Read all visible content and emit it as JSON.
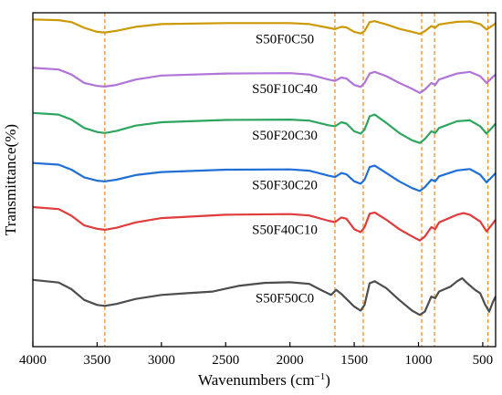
{
  "chart_data": {
    "type": "line",
    "xlabel": "Wavenumbers (cm",
    "xlabel_sup": "−1",
    "xlabel_close": ")",
    "ylabel": "Transmittance(%)",
    "xlim": [
      4000,
      400
    ],
    "x_reversed": true,
    "ylim": [
      0,
      1
    ],
    "y_ticks_shown": false,
    "x_ticks": [
      4000,
      3500,
      3000,
      2500,
      2000,
      1500,
      1000,
      500
    ],
    "x_tick_labels": [
      "4000",
      "3500",
      "3000",
      "2500",
      "2000",
      "1500",
      "1000",
      "500"
    ],
    "reference_lines": [
      3440,
      1650,
      1430,
      975,
      875,
      460
    ],
    "reference_line_color": "#f28e2b",
    "grid": false,
    "legend": "none",
    "series": [
      {
        "name": "S50F0C50",
        "color": "#cc9a06",
        "label_x": 2040,
        "points": [
          [
            4000,
            0.98
          ],
          [
            3800,
            0.978
          ],
          [
            3700,
            0.972
          ],
          [
            3600,
            0.955
          ],
          [
            3500,
            0.943
          ],
          [
            3440,
            0.941
          ],
          [
            3350,
            0.946
          ],
          [
            3200,
            0.958
          ],
          [
            3000,
            0.966
          ],
          [
            2500,
            0.969
          ],
          [
            2000,
            0.969
          ],
          [
            1850,
            0.966
          ],
          [
            1700,
            0.955
          ],
          [
            1650,
            0.951
          ],
          [
            1600,
            0.958
          ],
          [
            1560,
            0.956
          ],
          [
            1500,
            0.943
          ],
          [
            1450,
            0.938
          ],
          [
            1420,
            0.945
          ],
          [
            1380,
            0.972
          ],
          [
            1340,
            0.975
          ],
          [
            1250,
            0.965
          ],
          [
            1150,
            0.952
          ],
          [
            1050,
            0.943
          ],
          [
            990,
            0.937
          ],
          [
            950,
            0.945
          ],
          [
            900,
            0.96
          ],
          [
            870,
            0.955
          ],
          [
            840,
            0.965
          ],
          [
            700,
            0.973
          ],
          [
            600,
            0.974
          ],
          [
            520,
            0.966
          ],
          [
            470,
            0.95
          ],
          [
            430,
            0.96
          ],
          [
            400,
            0.968
          ]
        ]
      },
      {
        "name": "S50F10C40",
        "color": "#b174d8",
        "label_x": 2040,
        "points": [
          [
            4000,
            0.835
          ],
          [
            3800,
            0.83
          ],
          [
            3700,
            0.815
          ],
          [
            3600,
            0.79
          ],
          [
            3500,
            0.781
          ],
          [
            3440,
            0.779
          ],
          [
            3350,
            0.784
          ],
          [
            3200,
            0.8
          ],
          [
            3000,
            0.812
          ],
          [
            2500,
            0.818
          ],
          [
            2000,
            0.819
          ],
          [
            1850,
            0.815
          ],
          [
            1700,
            0.8
          ],
          [
            1650,
            0.796
          ],
          [
            1600,
            0.806
          ],
          [
            1560,
            0.803
          ],
          [
            1500,
            0.784
          ],
          [
            1450,
            0.778
          ],
          [
            1420,
            0.79
          ],
          [
            1380,
            0.818
          ],
          [
            1340,
            0.823
          ],
          [
            1250,
            0.81
          ],
          [
            1150,
            0.79
          ],
          [
            1050,
            0.772
          ],
          [
            990,
            0.76
          ],
          [
            950,
            0.77
          ],
          [
            900,
            0.79
          ],
          [
            870,
            0.784
          ],
          [
            840,
            0.8
          ],
          [
            700,
            0.818
          ],
          [
            600,
            0.823
          ],
          [
            520,
            0.81
          ],
          [
            470,
            0.79
          ],
          [
            430,
            0.805
          ],
          [
            400,
            0.815
          ]
        ]
      },
      {
        "name": "S50F20C30",
        "color": "#2ea55f",
        "label_x": 2040,
        "points": [
          [
            4000,
            0.7
          ],
          [
            3800,
            0.695
          ],
          [
            3700,
            0.68
          ],
          [
            3600,
            0.655
          ],
          [
            3500,
            0.643
          ],
          [
            3440,
            0.64
          ],
          [
            3350,
            0.646
          ],
          [
            3200,
            0.662
          ],
          [
            3000,
            0.672
          ],
          [
            2500,
            0.679
          ],
          [
            2000,
            0.68
          ],
          [
            1850,
            0.677
          ],
          [
            1700,
            0.663
          ],
          [
            1650,
            0.66
          ],
          [
            1600,
            0.672
          ],
          [
            1560,
            0.668
          ],
          [
            1500,
            0.645
          ],
          [
            1450,
            0.638
          ],
          [
            1420,
            0.65
          ],
          [
            1380,
            0.69
          ],
          [
            1340,
            0.695
          ],
          [
            1250,
            0.67
          ],
          [
            1150,
            0.64
          ],
          [
            1050,
            0.618
          ],
          [
            990,
            0.61
          ],
          [
            950,
            0.622
          ],
          [
            900,
            0.645
          ],
          [
            870,
            0.64
          ],
          [
            840,
            0.655
          ],
          [
            700,
            0.675
          ],
          [
            600,
            0.678
          ],
          [
            520,
            0.66
          ],
          [
            470,
            0.638
          ],
          [
            430,
            0.655
          ],
          [
            400,
            0.668
          ]
        ]
      },
      {
        "name": "S50F30C20",
        "color": "#1f6fd6",
        "label_x": 2040,
        "points": [
          [
            4000,
            0.55
          ],
          [
            3800,
            0.545
          ],
          [
            3700,
            0.53
          ],
          [
            3600,
            0.507
          ],
          [
            3500,
            0.497
          ],
          [
            3440,
            0.495
          ],
          [
            3350,
            0.5
          ],
          [
            3200,
            0.514
          ],
          [
            3000,
            0.523
          ],
          [
            2500,
            0.53
          ],
          [
            2000,
            0.531
          ],
          [
            1850,
            0.527
          ],
          [
            1700,
            0.512
          ],
          [
            1650,
            0.508
          ],
          [
            1600,
            0.52
          ],
          [
            1560,
            0.516
          ],
          [
            1500,
            0.495
          ],
          [
            1450,
            0.488
          ],
          [
            1420,
            0.5
          ],
          [
            1380,
            0.538
          ],
          [
            1340,
            0.542
          ],
          [
            1250,
            0.52
          ],
          [
            1150,
            0.495
          ],
          [
            1050,
            0.475
          ],
          [
            990,
            0.466
          ],
          [
            950,
            0.478
          ],
          [
            900,
            0.5
          ],
          [
            870,
            0.495
          ],
          [
            840,
            0.51
          ],
          [
            700,
            0.528
          ],
          [
            600,
            0.532
          ],
          [
            520,
            0.515
          ],
          [
            470,
            0.492
          ],
          [
            430,
            0.508
          ],
          [
            400,
            0.52
          ]
        ]
      },
      {
        "name": "S50F40C10",
        "color": "#e03c3c",
        "label_x": 2040,
        "points": [
          [
            4000,
            0.418
          ],
          [
            3800,
            0.412
          ],
          [
            3700,
            0.392
          ],
          [
            3600,
            0.363
          ],
          [
            3500,
            0.353
          ],
          [
            3440,
            0.35
          ],
          [
            3350,
            0.356
          ],
          [
            3200,
            0.372
          ],
          [
            3000,
            0.385
          ],
          [
            2500,
            0.395
          ],
          [
            2000,
            0.397
          ],
          [
            1850,
            0.393
          ],
          [
            1700,
            0.377
          ],
          [
            1650,
            0.373
          ],
          [
            1600,
            0.387
          ],
          [
            1560,
            0.383
          ],
          [
            1500,
            0.352
          ],
          [
            1450,
            0.343
          ],
          [
            1420,
            0.358
          ],
          [
            1380,
            0.398
          ],
          [
            1340,
            0.402
          ],
          [
            1250,
            0.38
          ],
          [
            1150,
            0.352
          ],
          [
            1050,
            0.33
          ],
          [
            990,
            0.318
          ],
          [
            950,
            0.33
          ],
          [
            900,
            0.358
          ],
          [
            870,
            0.352
          ],
          [
            840,
            0.372
          ],
          [
            700,
            0.395
          ],
          [
            650,
            0.4
          ],
          [
            600,
            0.395
          ],
          [
            520,
            0.375
          ],
          [
            470,
            0.345
          ],
          [
            430,
            0.365
          ],
          [
            400,
            0.38
          ]
        ]
      },
      {
        "name": "S50F50C0",
        "color": "#4d4d4d",
        "label_x": 2040,
        "points": [
          [
            4000,
            0.2
          ],
          [
            3800,
            0.192
          ],
          [
            3700,
            0.172
          ],
          [
            3600,
            0.14
          ],
          [
            3500,
            0.125
          ],
          [
            3440,
            0.122
          ],
          [
            3350,
            0.128
          ],
          [
            3200,
            0.143
          ],
          [
            3000,
            0.155
          ],
          [
            2800,
            0.16
          ],
          [
            2600,
            0.165
          ],
          [
            2400,
            0.182
          ],
          [
            2200,
            0.191
          ],
          [
            2000,
            0.193
          ],
          [
            1850,
            0.188
          ],
          [
            1750,
            0.168
          ],
          [
            1680,
            0.155
          ],
          [
            1640,
            0.17
          ],
          [
            1600,
            0.158
          ],
          [
            1500,
            0.12
          ],
          [
            1450,
            0.108
          ],
          [
            1420,
            0.125
          ],
          [
            1380,
            0.19
          ],
          [
            1340,
            0.196
          ],
          [
            1250,
            0.175
          ],
          [
            1150,
            0.14
          ],
          [
            1050,
            0.108
          ],
          [
            990,
            0.095
          ],
          [
            950,
            0.105
          ],
          [
            900,
            0.15
          ],
          [
            870,
            0.145
          ],
          [
            840,
            0.165
          ],
          [
            750,
            0.18
          ],
          [
            700,
            0.196
          ],
          [
            660,
            0.205
          ],
          [
            620,
            0.19
          ],
          [
            560,
            0.17
          ],
          [
            520,
            0.16
          ],
          [
            480,
            0.125
          ],
          [
            450,
            0.105
          ],
          [
            420,
            0.135
          ],
          [
            400,
            0.15
          ]
        ]
      }
    ]
  }
}
